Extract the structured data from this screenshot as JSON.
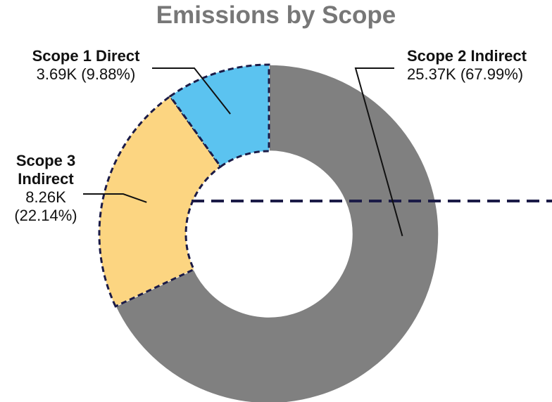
{
  "chart_data": {
    "type": "donut",
    "title": "Emissions by Scope",
    "unit_suffix": "K",
    "slices": [
      {
        "name": "Scope 2 Indirect",
        "value": 25.37,
        "value_label": "25.37K",
        "percent_label": "(67.99%)",
        "color": "#808080",
        "highlighted": false
      },
      {
        "name": "Scope 3 Indirect",
        "value": 8.26,
        "value_label": "8.26K",
        "percent_label": "(22.14%)",
        "color": "#FCD581",
        "highlighted": true
      },
      {
        "name": "Scope 1 Direct",
        "value": 3.69,
        "value_label": "3.69K",
        "percent_label": "(9.88%)",
        "color": "#5BC3F0",
        "highlighted": true
      }
    ],
    "highlight_outline_color": "#1B1B47",
    "legend": "none"
  }
}
